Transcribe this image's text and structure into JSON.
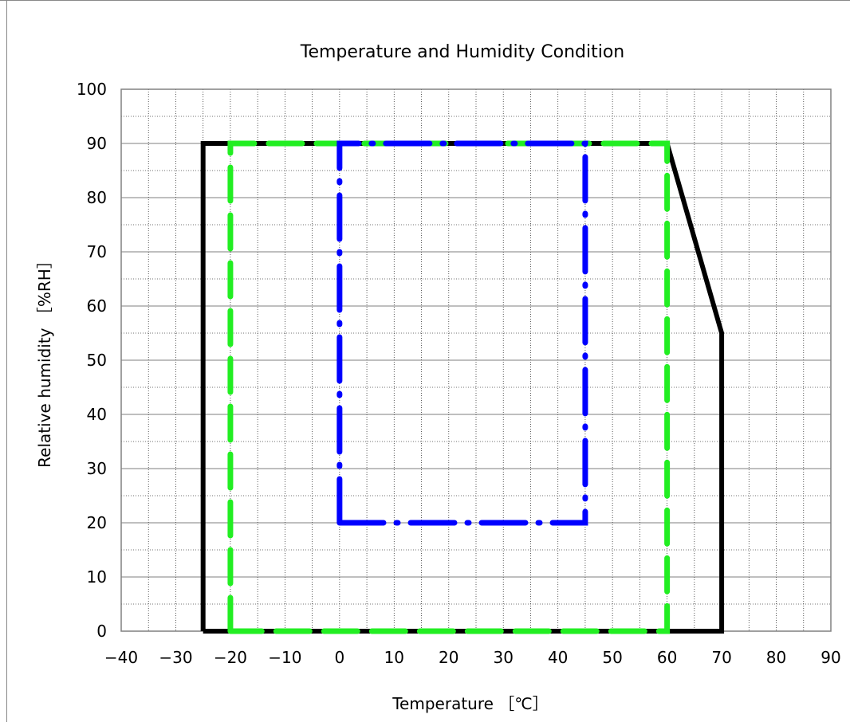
{
  "chart_data": {
    "type": "line",
    "title": "Temperature and Humidity Condition",
    "xlabel": "Temperature ［℃］",
    "ylabel": "Relative humidity ［%RH］",
    "xlim": [
      -40,
      90
    ],
    "ylim": [
      0,
      100
    ],
    "x_ticks": [
      -40,
      -30,
      -20,
      -10,
      0,
      10,
      20,
      30,
      40,
      50,
      60,
      70,
      80,
      90
    ],
    "y_ticks": [
      0,
      10,
      20,
      30,
      40,
      50,
      60,
      70,
      80,
      90,
      100
    ],
    "x_tick_labels": [
      "−40",
      "−30",
      "−20",
      "−10",
      "0",
      "10",
      "20",
      "30",
      "40",
      "50",
      "60",
      "70",
      "80",
      "90"
    ],
    "y_tick_labels": [
      "0",
      "10",
      "20",
      "30",
      "40",
      "50",
      "60",
      "70",
      "80",
      "90",
      "100"
    ],
    "grid": "major and minor",
    "legend": "none",
    "series": [
      {
        "color": "#000000",
        "style": "solid",
        "points": [
          [
            -25,
            0
          ],
          [
            -25,
            90
          ],
          [
            60,
            90
          ],
          [
            70,
            55
          ],
          [
            70,
            0
          ],
          [
            -25,
            0
          ]
        ]
      },
      {
        "color": "#22ee22",
        "style": "dashed",
        "points": [
          [
            -20,
            0
          ],
          [
            -20,
            90
          ],
          [
            60,
            90
          ],
          [
            60,
            0
          ],
          [
            -20,
            0
          ]
        ]
      },
      {
        "color": "#0000ff",
        "style": "dash-dot",
        "points": [
          [
            0,
            20
          ],
          [
            0,
            90
          ],
          [
            45,
            90
          ],
          [
            45,
            20
          ],
          [
            0,
            20
          ]
        ]
      }
    ]
  }
}
